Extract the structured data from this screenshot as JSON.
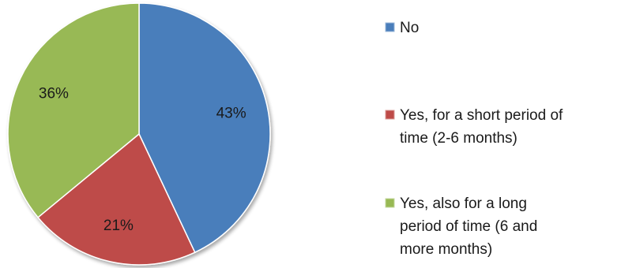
{
  "chart_data": {
    "type": "pie",
    "categories": [
      "No",
      "Yes, for a short period of time (2-6 months)",
      "Yes, also for a long period of time (6 and more months)"
    ],
    "values": [
      43,
      21,
      36
    ],
    "labels": [
      "43%",
      "21%",
      "36%"
    ],
    "colors": [
      "#4a7ebb",
      "#be4b48",
      "#98b954"
    ],
    "legend": {
      "placement": "right",
      "entries": [
        [
          "No"
        ],
        [
          "Yes, for a short period of",
          "time (2-6 months)"
        ],
        [
          "Yes, also for a long",
          "period of time (6 and",
          "more months)"
        ]
      ]
    }
  }
}
